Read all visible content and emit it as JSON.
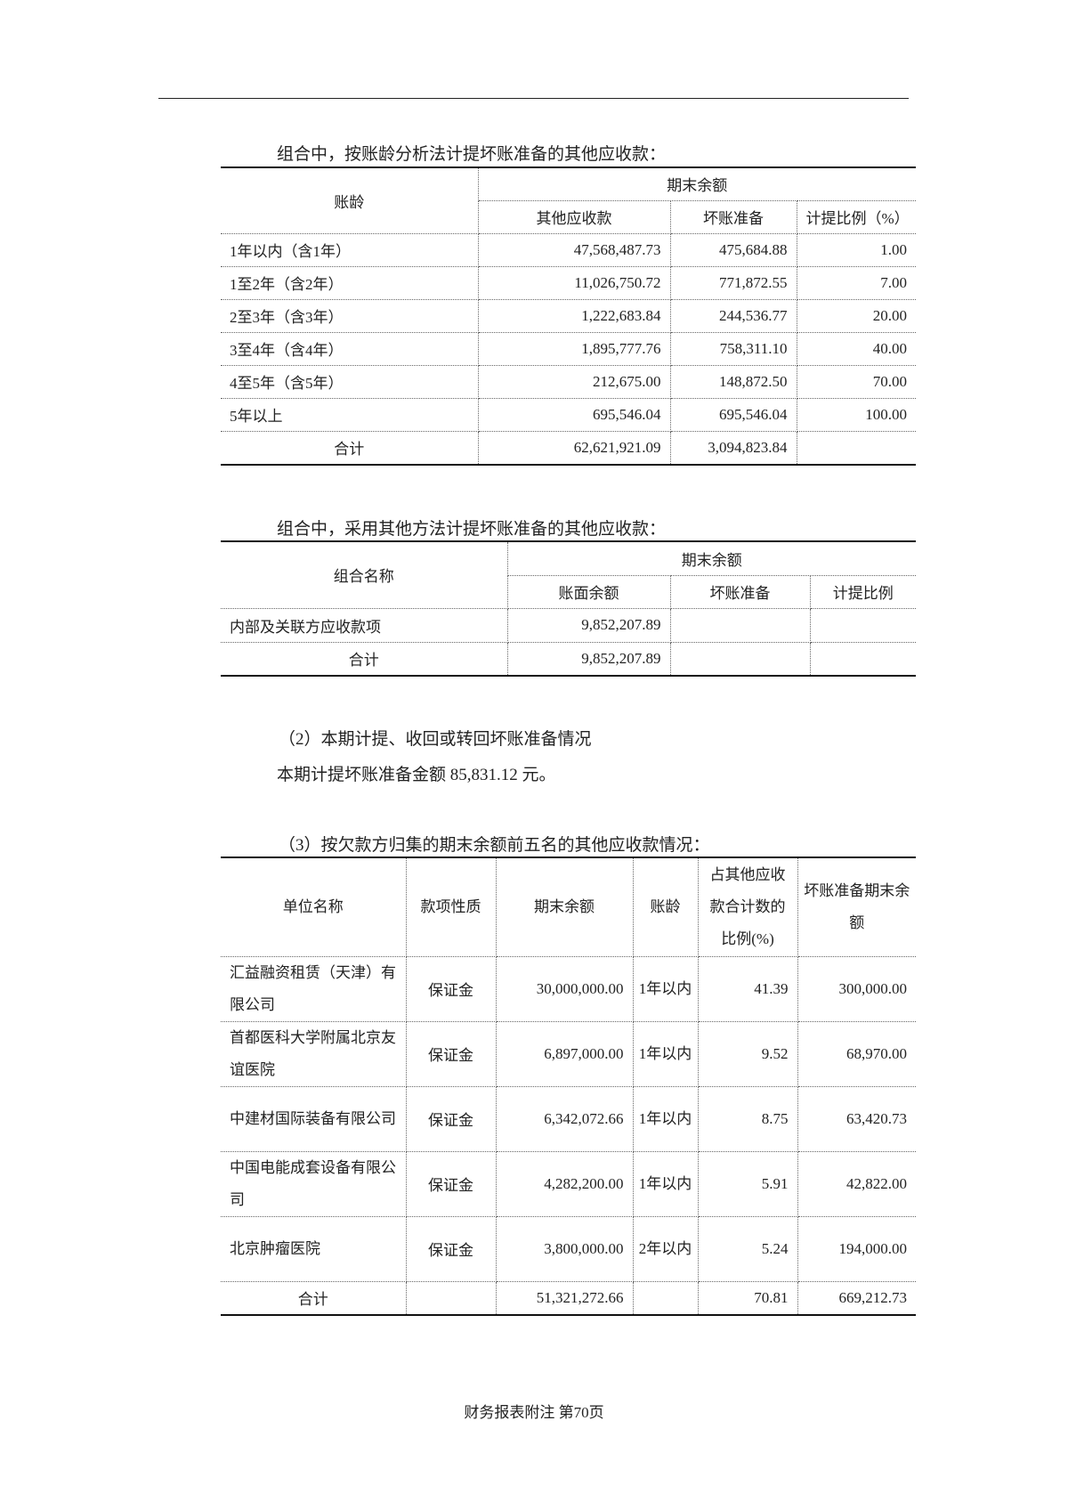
{
  "section1": {
    "title": "组合中，按账龄分析法计提坏账准备的其他应收款：",
    "headers": {
      "age": "账龄",
      "group": "期末余额",
      "col1": "其他应收款",
      "col2": "坏账准备",
      "col3": "计提比例（%）"
    },
    "rows": [
      [
        "1年以内（含1年）",
        "47,568,487.73",
        "475,684.88",
        "1.00"
      ],
      [
        "1至2年（含2年）",
        "11,026,750.72",
        "771,872.55",
        "7.00"
      ],
      [
        "2至3年（含3年）",
        "1,222,683.84",
        "244,536.77",
        "20.00"
      ],
      [
        "3至4年（含4年）",
        "1,895,777.76",
        "758,311.10",
        "40.00"
      ],
      [
        "4至5年（含5年）",
        "212,675.00",
        "148,872.50",
        "70.00"
      ],
      [
        "5年以上",
        "695,546.04",
        "695,546.04",
        "100.00"
      ]
    ],
    "total": [
      "合计",
      "62,621,921.09",
      "3,094,823.84",
      ""
    ]
  },
  "section2": {
    "title": "组合中，采用其他方法计提坏账准备的其他应收款：",
    "headers": {
      "name": "组合名称",
      "group": "期末余额",
      "col1": "账面余额",
      "col2": "坏账准备",
      "col3": "计提比例"
    },
    "rows": [
      [
        "内部及关联方应收款项",
        "9,852,207.89",
        "",
        ""
      ]
    ],
    "total": [
      "合计",
      "9,852,207.89",
      "",
      ""
    ]
  },
  "section3": {
    "heading": "（2）本期计提、收回或转回坏账准备情况",
    "text": "本期计提坏账准备金额 85,831.12 元。"
  },
  "section4": {
    "title": "（3）按欠款方归集的期末余额前五名的其他应收款情况：",
    "headers": [
      "单位名称",
      "款项性质",
      "期末余额",
      "账龄",
      "占其他应收款合计数的比例(%)",
      "坏账准备期末余额"
    ],
    "rows": [
      [
        "汇益融资租赁（天津）有限公司",
        "保证金",
        "30,000,000.00",
        "1年以内",
        "41.39",
        "300,000.00"
      ],
      [
        "首都医科大学附属北京友谊医院",
        "保证金",
        "6,897,000.00",
        "1年以内",
        "9.52",
        "68,970.00"
      ],
      [
        "中建材国际装备有限公司",
        "保证金",
        "6,342,072.66",
        "1年以内",
        "8.75",
        "63,420.73"
      ],
      [
        "中国电能成套设备有限公司",
        "保证金",
        "4,282,200.00",
        "1年以内",
        "5.91",
        "42,822.00"
      ],
      [
        "北京肿瘤医院",
        "保证金",
        "3,800,000.00",
        "2年以内",
        "5.24",
        "194,000.00"
      ]
    ],
    "total": [
      "合计",
      "",
      "51,321,272.66",
      "",
      "70.81",
      "669,212.73"
    ]
  },
  "footer": "财务报表附注 第70页"
}
